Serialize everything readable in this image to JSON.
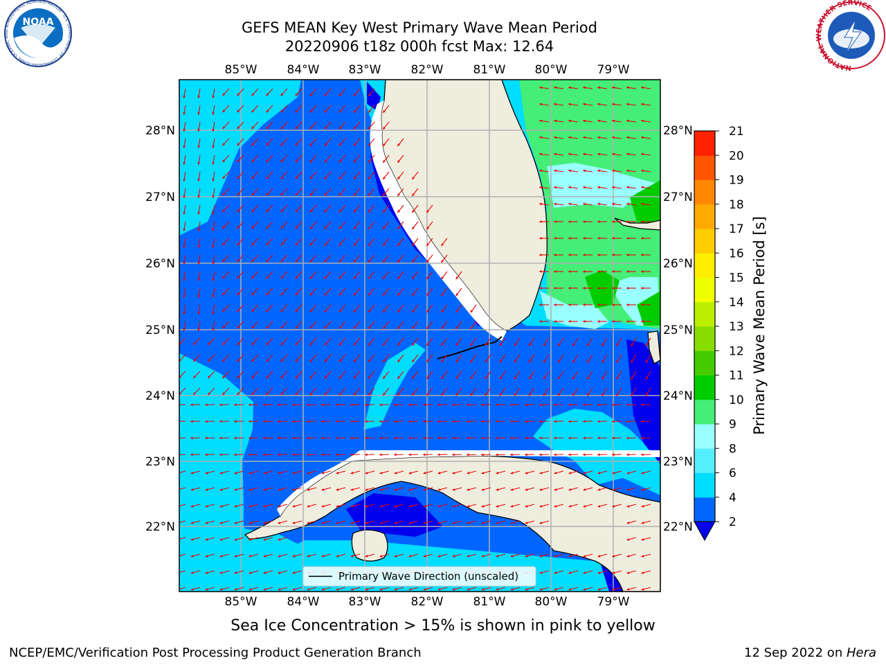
{
  "title_line1": "GEFS MEAN Key West Primary Wave Mean Period",
  "title_line2": "20220906 t18z 000h fcst   Max: 12.64",
  "caption": "Sea Ice Concentration > 15% is shown in pink to yellow",
  "credit_left": "NCEP/EMC/Verification Post Processing Product Generation Branch",
  "credit_right_prefix": "12 Sep 2022 on ",
  "credit_right_host": "Hera",
  "legend_label": "Primary Wave Direction (unscaled)",
  "colorbar": {
    "label": "Primary Wave Mean Period [s]",
    "ticks": [
      "2",
      "4",
      "6",
      "8",
      "9",
      "10",
      "11",
      "12",
      "13",
      "14",
      "15",
      "16",
      "17",
      "18",
      "19",
      "20",
      "21"
    ],
    "colors": [
      "#0000ee",
      "#0066ff",
      "#00ddff",
      "#55eeff",
      "#99ffff",
      "#44ee77",
      "#00cc00",
      "#44cc00",
      "#88dd00",
      "#bbee00",
      "#eeff00",
      "#ffee00",
      "#ffcc00",
      "#ffaa00",
      "#ff8800",
      "#ff5500",
      "#ff2200",
      "#ff0000"
    ]
  },
  "map": {
    "lon_labels": [
      "85°W",
      "84°W",
      "83°W",
      "82°W",
      "81°W",
      "80°W",
      "79°W"
    ],
    "lat_labels": [
      "28°N",
      "27°N",
      "26°N",
      "25°N",
      "24°N",
      "23°N",
      "22°N"
    ],
    "land_color": "#efedde",
    "arrow_color": "#ee0000",
    "grid_color": "#b0b0b0"
  },
  "logos": {
    "noaa_text": "NOAA",
    "noaa_ring": "NATIONAL OCEANIC AND ATMOSPHERIC ADMINISTRATION · U.S. DEPARTMENT OF COMMERCE",
    "nws_ring": "NATIONAL WEATHER SERVICE"
  }
}
